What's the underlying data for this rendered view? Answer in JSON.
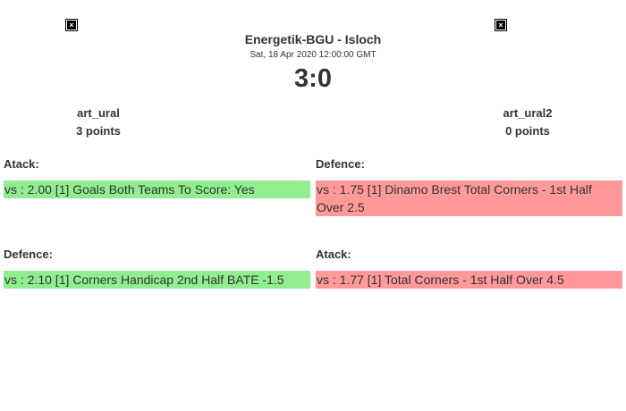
{
  "match": {
    "title": "Energetik-BGU - Isloch",
    "date": "Sat, 18 Apr 2020 12:00:00 GMT",
    "score": "3:0"
  },
  "home": {
    "name": "art_ural",
    "points": "3 points",
    "logo_icon": "broken-image-icon"
  },
  "away": {
    "name": "art_ural2",
    "points": "0 points",
    "logo_icon": "broken-image-icon"
  },
  "home_bets": [
    {
      "label": "Atack:",
      "text": "vs : 2.00 [1] Goals Both Teams To Score: Yes",
      "color": "#90ee90"
    },
    {
      "label": "Defence:",
      "text": "vs : 2.10 [1] Corners Handicap 2nd Half BATE -1.5",
      "color": "#90ee90"
    }
  ],
  "away_bets": [
    {
      "label": "Defence:",
      "text": "vs : 1.75 [1] Dinamo Brest Total Corners - 1st Half Over 2.5",
      "color": "#ff9999"
    },
    {
      "label": "Atack:",
      "text": "vs : 1.77 [1] Total Corners - 1st Half Over 4.5",
      "color": "#ff9999"
    }
  ]
}
